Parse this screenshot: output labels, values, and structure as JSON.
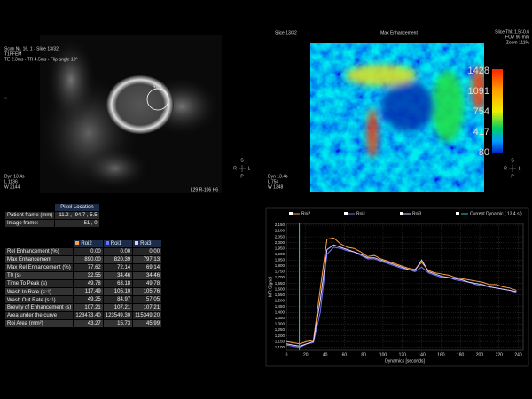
{
  "left_image": {
    "info_lines": [
      "Scan Nr. 16, 1 - Slice 13/32",
      "T1FFEM",
      "TE 2.3ms - TR 4.5ms - Flip angle 10°"
    ],
    "marker": "**",
    "roi_label": "Roi2",
    "bottom_lines": [
      "Dyn 13.4s",
      "L 1136",
      "W 2144"
    ],
    "position": "L29 R-106 H6",
    "orientation": [
      "S",
      "R",
      "L",
      "P"
    ]
  },
  "right_image": {
    "slice": "Slice 13/32",
    "map_link": "Max Enhancement",
    "info_lines": [
      "Slice Thk 1.5/-0.6",
      "FOV 90 mm",
      "Zoom 111%"
    ],
    "bottom_lines": [
      "Dyn 13.4s",
      "L 754",
      "W 1348"
    ],
    "orientation": [
      "S",
      "R",
      "L",
      "P"
    ],
    "colorbar": [
      1428,
      1091,
      754,
      417,
      80
    ]
  },
  "pixel_table": {
    "title": "Pixel Location",
    "rows": [
      [
        "Patient frame (mm)",
        "-11.2 , -94.7 , 5.5"
      ],
      [
        "Image frame:",
        "51 , 0"
      ]
    ]
  },
  "roi_table": {
    "columns": [
      "Roi2",
      "Roi1",
      "Roi3"
    ],
    "colors": [
      "#ffa040",
      "#7070ff",
      "#e0d0ff"
    ],
    "rows": [
      [
        "Rel Enhancement  (%)",
        "0.00",
        "0.00",
        "0.00"
      ],
      [
        "Max Enhancement",
        "890.00",
        "820.39",
        "797.13"
      ],
      [
        "Max Rel Enhancement (%)",
        "77.62",
        "72.14",
        "69.14"
      ],
      [
        "T0 (s)",
        "32.55",
        "34.46",
        "34.46"
      ],
      [
        "Time To Peak (s)",
        "49.78",
        "63.18",
        "49.78"
      ],
      [
        "Wash In Rate (s⁻¹)",
        "117.49",
        "105.10",
        "105.76"
      ],
      [
        "Wash Out Rate (s⁻¹)",
        "49.25",
        "84.97",
        "57.05"
      ],
      [
        "Brevity of Enhancement (s)",
        "107.21",
        "107.21",
        "107.21"
      ],
      [
        "Area under the curve",
        "128473.40",
        "123549.30",
        "115349.20"
      ],
      [
        "Roi Area (mm²)",
        "43.27",
        "15.73",
        "45.99"
      ]
    ]
  },
  "chart_data": {
    "type": "line",
    "x_label": "Dynamics [seconds]",
    "y_label": "MR Signal",
    "x": [
      0,
      7,
      14,
      21,
      28,
      35,
      42,
      49,
      56,
      63,
      70,
      77,
      84,
      91,
      98,
      105,
      112,
      119,
      126,
      133,
      140,
      147,
      154,
      161,
      168,
      175,
      182,
      189,
      196,
      203,
      210,
      217,
      224,
      231,
      238
    ],
    "series": [
      {
        "name": "Roi2",
        "color": "#ffa040",
        "values": [
          1150,
          1140,
          1130,
          1150,
          1160,
          1600,
          2030,
          2040,
          1990,
          1960,
          1950,
          1920,
          1880,
          1890,
          1860,
          1840,
          1820,
          1800,
          1780,
          1770,
          1830,
          1760,
          1740,
          1730,
          1720,
          1700,
          1690,
          1680,
          1670,
          1660,
          1640,
          1640,
          1620,
          1610,
          1590
        ]
      },
      {
        "name": "Roi1",
        "color": "#7070ff",
        "values": [
          1120,
          1110,
          1100,
          1130,
          1140,
          1400,
          1900,
          1960,
          1950,
          1930,
          1920,
          1890,
          1860,
          1860,
          1840,
          1820,
          1800,
          1780,
          1770,
          1750,
          1790,
          1740,
          1720,
          1700,
          1700,
          1680,
          1670,
          1660,
          1640,
          1630,
          1620,
          1610,
          1600,
          1590,
          1570
        ]
      },
      {
        "name": "Roi3",
        "color": "#e0d0ff",
        "values": [
          1130,
          1120,
          1110,
          1130,
          1150,
          1500,
          1940,
          1980,
          1960,
          1940,
          1920,
          1900,
          1870,
          1870,
          1850,
          1830,
          1810,
          1790,
          1770,
          1760,
          1850,
          1750,
          1730,
          1710,
          1700,
          1690,
          1680,
          1660,
          1650,
          1640,
          1620,
          1610,
          1600,
          1590,
          1580
        ]
      }
    ],
    "current": {
      "name": "Current Dynamic ( 13.4 s )",
      "value": 13.4,
      "color": "#20c8c8"
    },
    "xlim": [
      0,
      245
    ],
    "xticks": [
      0,
      20,
      40,
      60,
      80,
      100,
      120,
      140,
      160,
      180,
      200,
      220,
      240
    ],
    "ylim": [
      1075,
      2165
    ],
    "yticks": [
      {
        "value": 1100,
        "label": "1,100"
      },
      {
        "value": 1150,
        "label": "1,150"
      },
      {
        "value": 1200,
        "label": "1,200"
      },
      {
        "value": 1250,
        "label": "1,250"
      },
      {
        "value": 1300,
        "label": "1,300"
      },
      {
        "value": 1350,
        "label": "1,350"
      },
      {
        "value": 1400,
        "label": "1,400"
      },
      {
        "value": 1450,
        "label": "1,450"
      },
      {
        "value": 1500,
        "label": "1,500"
      },
      {
        "value": 1550,
        "label": "1,550"
      },
      {
        "value": 1600,
        "label": "1,600"
      },
      {
        "value": 1650,
        "label": "1,650"
      },
      {
        "value": 1700,
        "label": "1,700"
      },
      {
        "value": 1750,
        "label": "1,750"
      },
      {
        "value": 1800,
        "label": "1,800"
      },
      {
        "value": 1850,
        "label": "1,850"
      },
      {
        "value": 1900,
        "label": "1,900"
      },
      {
        "value": 1950,
        "label": "1,950"
      },
      {
        "value": 2000,
        "label": "2,000"
      },
      {
        "value": 2050,
        "label": "2,050"
      },
      {
        "value": 2100,
        "label": "2,100"
      },
      {
        "value": 2150,
        "label": "2,150"
      }
    ],
    "grid": true
  }
}
